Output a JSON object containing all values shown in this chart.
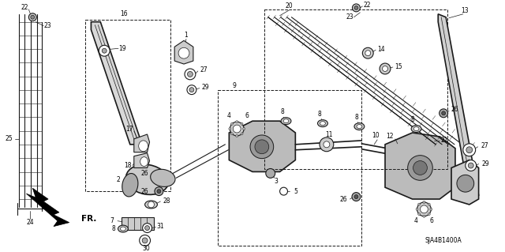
{
  "bg_color": "#ffffff",
  "part_id": "SJA4B1400A",
  "fig_width": 6.4,
  "fig_height": 3.19,
  "dpi": 100,
  "lc": "#1a1a1a"
}
